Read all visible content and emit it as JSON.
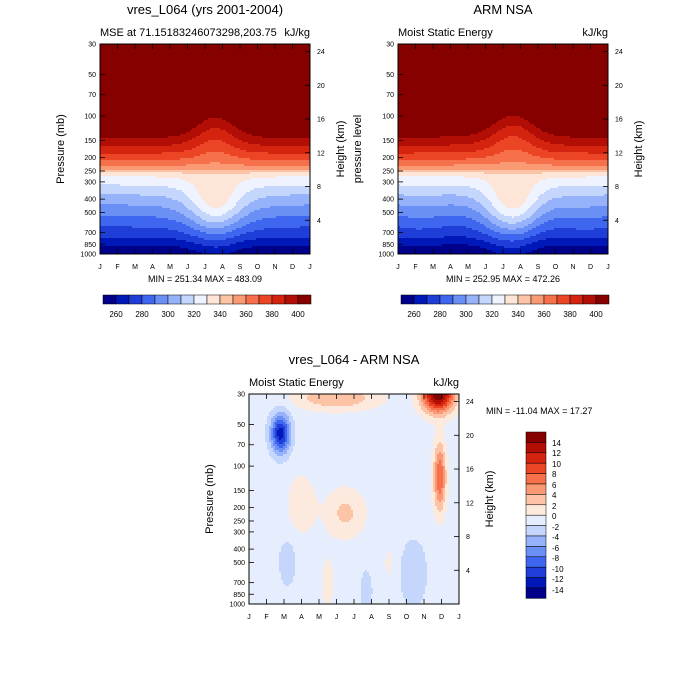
{
  "months": [
    "J",
    "F",
    "M",
    "A",
    "M",
    "J",
    "J",
    "A",
    "S",
    "O",
    "N",
    "D",
    "J"
  ],
  "pressure_ticks": [
    30,
    50,
    70,
    100,
    150,
    200,
    250,
    300,
    400,
    500,
    700,
    850,
    1000
  ],
  "height_ticks": [
    4,
    8,
    12,
    16,
    20,
    24
  ],
  "chart_data": [
    {
      "type": "heatmap",
      "title": "vres_L064 (yrs 2001-2004)",
      "left_label": "MSE at 71.15183246073298,203.75",
      "right_label": "kJ/kg",
      "ylabel": "Pressure (mb)",
      "y2label": "Height (km)",
      "ylim": [
        1000,
        30
      ],
      "stats": "MIN = 251.34 MAX = 483.09",
      "colorbar_labels": [
        "260",
        "280",
        "300",
        "320",
        "340",
        "360",
        "380",
        "400"
      ]
    },
    {
      "type": "heatmap",
      "title": "ARM NSA",
      "left_label": "Moist Static Energy",
      "right_label": "kJ/kg",
      "ylabel": "pressure level",
      "y2label": "Height (km)",
      "ylim": [
        1000,
        30
      ],
      "stats": "MIN = 252.95 MAX = 472.26",
      "colorbar_labels": [
        "260",
        "280",
        "300",
        "320",
        "340",
        "360",
        "380",
        "400"
      ]
    },
    {
      "type": "heatmap",
      "title": "vres_L064 - ARM NSA",
      "left_label": "Moist Static Energy",
      "right_label": "kJ/kg",
      "ylabel": "Pressure (mb)",
      "y2label": "Height (km)",
      "ylim": [
        1000,
        30
      ],
      "stats": "MIN = -11.04 MAX =  17.27",
      "colorbar_labels": [
        "14",
        "12",
        "10",
        "8",
        "6",
        "4",
        "2",
        "0",
        "-2",
        "-4",
        "-6",
        "-8",
        "-10",
        "-12",
        "-14"
      ]
    }
  ],
  "colors": {
    "abs": [
      "#00008b",
      "#0018b8",
      "#1f3ed8",
      "#3f66ee",
      "#6a8ff5",
      "#96b2fa",
      "#c4d6fc",
      "#eef3ff",
      "#fde6d8",
      "#fcc3a6",
      "#fa9a74",
      "#f6714b",
      "#ec4526",
      "#d4230f",
      "#b30e06",
      "#860000"
    ],
    "diff": [
      "#00008b",
      "#0018b8",
      "#1f3ed8",
      "#3f66ee",
      "#6a8ff5",
      "#96b2fa",
      "#c4d6fc",
      "#e6eefd",
      "#fdeadf",
      "#fcc3a6",
      "#fa9a74",
      "#f6714b",
      "#ec4526",
      "#d4230f",
      "#b30e06",
      "#860000"
    ]
  }
}
